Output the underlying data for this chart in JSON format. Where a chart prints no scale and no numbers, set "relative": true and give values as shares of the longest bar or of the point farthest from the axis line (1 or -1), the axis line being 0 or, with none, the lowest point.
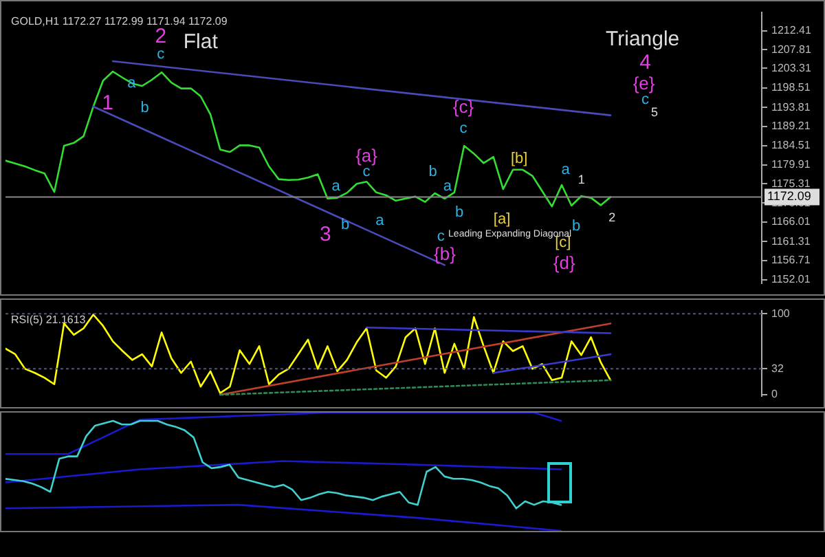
{
  "chart_data": [
    {
      "type": "line",
      "title": "GOLD,H1 1172.27 1172.99 1171.94 1172.09",
      "categories": [
        null,
        null,
        null,
        null,
        null,
        null,
        null,
        null,
        null,
        null,
        null,
        null,
        null,
        null,
        null,
        null,
        null,
        null,
        null,
        null,
        null,
        null,
        null,
        null,
        null,
        null,
        null,
        null,
        null,
        null,
        null,
        null,
        null,
        null,
        null,
        null,
        null,
        null,
        null,
        null,
        null,
        null,
        null,
        null,
        null,
        null,
        null,
        null,
        null,
        null,
        null,
        null,
        null,
        null,
        null,
        null,
        null,
        null,
        null,
        null,
        null,
        null,
        null
      ],
      "ylim": [
        1151.1,
        1216.9
      ],
      "yticks": [
        1152.01,
        1156.71,
        1161.31,
        1166.01,
        1170.61,
        1175.31,
        1179.91,
        1184.51,
        1189.21,
        1193.81,
        1198.51,
        1203.31,
        1207.81,
        1212.41
      ],
      "tick_labels": "y",
      "grid": false,
      "legend": false,
      "marker": "none",
      "line_style": "solid",
      "series": [
        {
          "color": "#33dd33",
          "values": [
            1180.9,
            1180.2,
            1179.5,
            1178.6,
            1177.8,
            1173.3,
            1184.5,
            1185.2,
            1186.8,
            1194,
            1200.3,
            1202.5,
            1201,
            1199.6,
            1199,
            1200.5,
            1202.3,
            1199.8,
            1198.4,
            1198.4,
            1196.5,
            1192.1,
            1183.6,
            1183,
            1184.6,
            1184.6,
            1184.1,
            1179.5,
            1176.4,
            1176.2,
            1176.3,
            1176.8,
            1177.6,
            1171.7,
            1171.9,
            1173.1,
            1175.3,
            1175.8,
            1173.2,
            1172.5,
            1171.2,
            1171.7,
            1172.2,
            1170.9,
            1173,
            1171.7,
            1173.2,
            1184.5,
            1182.6,
            1180.3,
            1181.8,
            1174,
            1178.7,
            1178.7,
            1177.2,
            1173.5,
            1169.8,
            1175,
            1170,
            1172.3,
            1171.9,
            1170.1,
            1172.1
          ]
        },
        {
          "type": "line",
          "color": "#4a4ab8",
          "values": [
            null,
            null,
            null,
            null,
            null,
            null,
            null,
            null,
            null,
            null,
            null,
            1205.0,
            null,
            null,
            null,
            null,
            null,
            null,
            null,
            null,
            null,
            null,
            null,
            null,
            null,
            null,
            null,
            null,
            null,
            null,
            null,
            null,
            null,
            null,
            null,
            null,
            null,
            null,
            null,
            null,
            null,
            null,
            null,
            null,
            null,
            null,
            null,
            null,
            null,
            null,
            null,
            null,
            null,
            null,
            null,
            null,
            null,
            null,
            null,
            null,
            null,
            null,
            1191.9
          ]
        },
        {
          "type": "line",
          "color": "#4a4ab8",
          "values": [
            null,
            null,
            null,
            null,
            null,
            null,
            null,
            null,
            null,
            1194.0,
            null,
            null,
            null,
            null,
            null,
            null,
            null,
            null,
            null,
            null,
            null,
            null,
            null,
            null,
            null,
            null,
            null,
            null,
            null,
            null,
            null,
            null,
            null,
            null,
            null,
            null,
            null,
            null,
            null,
            null,
            null,
            null,
            null,
            null,
            null,
            1155.6,
            null,
            null,
            null,
            null,
            null,
            null,
            null,
            null,
            null,
            null,
            null,
            null,
            null,
            null,
            null,
            null,
            null
          ]
        }
      ],
      "ref_lines": [
        {
          "axis": "y",
          "value": 1172.09,
          "label": "1172.09",
          "color": "#888888"
        }
      ],
      "annotations": [
        "2",
        "Flat",
        "1",
        "a",
        "c",
        "b",
        "3",
        "a",
        "b",
        "c",
        "{a}",
        "a",
        "b",
        "a",
        "b",
        "c",
        "{b}",
        "{c}",
        "c",
        "[b]",
        "[a]",
        "Leading Expanding Diagonal",
        "a",
        "b",
        "[c]",
        "{d}",
        "Triangle",
        "4",
        "{e}",
        "c",
        "5",
        "1",
        "2"
      ]
    },
    {
      "type": "line",
      "title": "RSI(5) 21.1613",
      "categories": [
        null,
        null,
        null,
        null,
        null,
        null,
        null,
        null,
        null,
        null,
        null,
        null,
        null,
        null,
        null,
        null,
        null,
        null,
        null,
        null,
        null,
        null,
        null,
        null,
        null,
        null,
        null,
        null,
        null,
        null,
        null,
        null,
        null,
        null,
        null,
        null,
        null,
        null,
        null,
        null,
        null,
        null,
        null,
        null,
        null,
        null,
        null,
        null,
        null,
        null,
        null,
        null,
        null,
        null,
        null,
        null,
        null,
        null,
        null,
        null,
        null,
        null,
        null
      ],
      "ylim": [
        -2,
        104
      ],
      "yticks": [
        0,
        32,
        100
      ],
      "tick_labels": "y",
      "grid": false,
      "legend": false,
      "marker": "none",
      "line_style": "solid",
      "series": [
        {
          "color": "#ffff00",
          "values": [
            57,
            50,
            32,
            27,
            21,
            13,
            88,
            74,
            82,
            99,
            85,
            66,
            54,
            43,
            50,
            35,
            77,
            45,
            27,
            41,
            10,
            29,
            2,
            10,
            55,
            38,
            60,
            13,
            25,
            32,
            50,
            68,
            32,
            60,
            29,
            43,
            65,
            82,
            30,
            21,
            35,
            71,
            82,
            38,
            82,
            27,
            63,
            32,
            96,
            60,
            27,
            66,
            54,
            60,
            32,
            38,
            18,
            21,
            66,
            49,
            71,
            40,
            18
          ]
        },
        {
          "type": "line",
          "color": "#c0402a",
          "values": [
            null,
            null,
            null,
            null,
            null,
            null,
            null,
            null,
            null,
            null,
            null,
            null,
            null,
            null,
            null,
            null,
            null,
            null,
            null,
            null,
            null,
            null,
            0,
            null,
            null,
            null,
            null,
            null,
            null,
            null,
            null,
            null,
            null,
            null,
            null,
            null,
            null,
            null,
            null,
            null,
            null,
            null,
            null,
            null,
            null,
            null,
            null,
            null,
            null,
            null,
            null,
            null,
            null,
            null,
            null,
            null,
            null,
            null,
            null,
            null,
            null,
            null,
            88
          ]
        },
        {
          "type": "line",
          "color": "#3a3ad0",
          "values": [
            null,
            null,
            null,
            null,
            null,
            null,
            null,
            null,
            null,
            null,
            null,
            null,
            null,
            null,
            null,
            null,
            null,
            null,
            null,
            null,
            null,
            null,
            null,
            null,
            null,
            null,
            null,
            null,
            null,
            null,
            null,
            null,
            null,
            null,
            null,
            null,
            null,
            83,
            null,
            null,
            null,
            null,
            null,
            null,
            null,
            null,
            null,
            null,
            null,
            null,
            null,
            null,
            null,
            null,
            null,
            null,
            null,
            null,
            null,
            null,
            null,
            null,
            76
          ]
        },
        {
          "type": "line",
          "color": "#3a3ad0",
          "values": [
            null,
            null,
            null,
            null,
            null,
            null,
            null,
            null,
            null,
            null,
            null,
            null,
            null,
            null,
            null,
            null,
            null,
            null,
            null,
            null,
            null,
            null,
            null,
            null,
            null,
            null,
            null,
            null,
            null,
            null,
            null,
            null,
            null,
            null,
            null,
            null,
            null,
            null,
            null,
            null,
            null,
            null,
            null,
            null,
            null,
            null,
            null,
            null,
            null,
            null,
            27,
            null,
            null,
            null,
            null,
            null,
            null,
            null,
            null,
            null,
            null,
            null,
            50
          ]
        },
        {
          "type": "line",
          "color": "#2e8b57",
          "line_style": "dotted",
          "values": [
            null,
            null,
            null,
            null,
            null,
            null,
            null,
            null,
            null,
            null,
            null,
            null,
            null,
            null,
            null,
            null,
            null,
            null,
            null,
            null,
            null,
            null,
            0,
            null,
            null,
            null,
            null,
            null,
            null,
            null,
            null,
            null,
            null,
            null,
            null,
            null,
            null,
            null,
            null,
            null,
            null,
            null,
            null,
            null,
            null,
            null,
            null,
            null,
            null,
            null,
            null,
            null,
            null,
            null,
            null,
            null,
            null,
            null,
            null,
            null,
            null,
            null,
            18
          ]
        }
      ],
      "ref_lines": [
        {
          "axis": "y",
          "value": 100,
          "color": "#555577",
          "line_style": "dotted"
        },
        {
          "axis": "y",
          "value": 32,
          "color": "#555577",
          "line_style": "dotted"
        }
      ]
    },
    {
      "type": "line",
      "relative": true,
      "categories": [
        null,
        null,
        null,
        null,
        null,
        null,
        null,
        null,
        null,
        null,
        null,
        null,
        null,
        null,
        null,
        null,
        null,
        null,
        null,
        null,
        null,
        null,
        null,
        null,
        null,
        null,
        null,
        null,
        null,
        null,
        null,
        null,
        null,
        null,
        null,
        null,
        null,
        null,
        null,
        null,
        null,
        null,
        null,
        null,
        null,
        null,
        null,
        null,
        null,
        null,
        null,
        null,
        null,
        null,
        null,
        null,
        null,
        null,
        null,
        null,
        null,
        null,
        null
      ],
      "tick_labels": false,
      "grid": false,
      "legend": false,
      "marker": "none",
      "line_style": "solid",
      "series": [
        {
          "color": "#1a1ad0",
          "values": [
            0.65,
            null,
            null,
            null,
            null,
            null,
            null,
            0.65,
            null,
            null,
            null,
            null,
            null,
            null,
            null,
            0.94,
            null,
            null,
            null,
            null,
            null,
            null,
            null,
            null,
            null,
            null,
            null,
            null,
            null,
            null,
            null,
            null,
            null,
            null,
            null,
            null,
            1,
            null,
            null,
            null,
            null,
            null,
            null,
            null,
            null,
            null,
            null,
            null,
            null,
            null,
            null,
            null,
            null,
            null,
            null,
            null,
            null,
            null,
            null,
            1,
            null,
            null,
            0.93
          ]
        },
        {
          "color": "#1a1ad0",
          "values": [
            0.41,
            null,
            null,
            null,
            null,
            null,
            null,
            null,
            null,
            null,
            null,
            null,
            null,
            null,
            null,
            0.52,
            null,
            null,
            null,
            null,
            null,
            null,
            null,
            null,
            null,
            null,
            null,
            null,
            null,
            null,
            null,
            0.59,
            null,
            null,
            null,
            null,
            null,
            null,
            null,
            null,
            null,
            null,
            null,
            null,
            null,
            null,
            0.56,
            null,
            null,
            null,
            null,
            null,
            null,
            null,
            null,
            null,
            null,
            null,
            null,
            null,
            null,
            null,
            0.52
          ]
        },
        {
          "color": "#1a1ad0",
          "values": [
            0.19,
            null,
            null,
            null,
            null,
            null,
            null,
            null,
            null,
            null,
            null,
            null,
            null,
            null,
            null,
            null,
            null,
            null,
            null,
            null,
            null,
            null,
            null,
            null,
            null,
            null,
            0.22,
            null,
            null,
            null,
            null,
            null,
            null,
            null,
            null,
            null,
            null,
            null,
            null,
            null,
            null,
            null,
            null,
            null,
            null,
            null,
            0.11,
            null,
            null,
            null,
            null,
            null,
            null,
            null,
            null,
            null,
            null,
            null,
            null,
            null,
            null,
            null,
            0
          ]
        },
        {
          "color": "#40d0d0",
          "values": [
            0.44,
            0.43,
            0.42,
            0.4,
            0.37,
            0.33,
            0.61,
            0.63,
            0.63,
            0.8,
            0.89,
            0.91,
            0.93,
            0.9,
            0.9,
            0.93,
            0.93,
            0.93,
            0.9,
            0.88,
            0.85,
            0.79,
            0.58,
            0.53,
            0.54,
            0.56,
            0.45,
            0.43,
            0.41,
            0.39,
            0.37,
            0.39,
            0.35,
            0.26,
            0.28,
            0.31,
            0.33,
            0.32,
            0.3,
            0.29,
            0.28,
            0.26,
            0.29,
            0.31,
            0.33,
            0.24,
            0.22,
            0.5,
            0.54,
            0.46,
            0.44,
            0.44,
            0.43,
            0.41,
            0.38,
            0.36,
            0.3,
            0.19,
            0.25,
            0.22,
            0.25,
            0.24,
            0.22
          ]
        }
      ]
    }
  ]
}
